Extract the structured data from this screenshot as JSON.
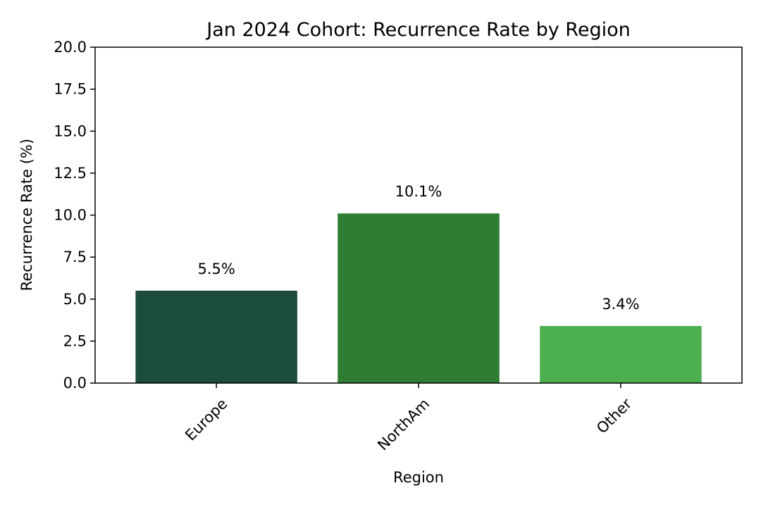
{
  "chart_data": {
    "type": "bar",
    "title": "Jan 2024 Cohort: Recurrence Rate by Region",
    "xlabel": "Region",
    "ylabel": "Recurrence Rate (%)",
    "categories": [
      "Europe",
      "NorthAm",
      "Other"
    ],
    "values": [
      5.5,
      10.1,
      3.4
    ],
    "value_labels": [
      "5.5%",
      "10.1%",
      "3.4%"
    ],
    "colors": [
      "#1b4d3a",
      "#2e7d32",
      "#4caf50"
    ],
    "ylim": [
      0,
      20
    ],
    "yticks": [
      0,
      2.5,
      5,
      7.5,
      10,
      12.5,
      15,
      17.5,
      20
    ],
    "ytick_labels": [
      "0.0",
      "2.5",
      "5.0",
      "7.5",
      "10.0",
      "12.5",
      "15.0",
      "17.5",
      "20.0"
    ],
    "grid": false,
    "legend": "none",
    "xtick_rotation": 45
  }
}
